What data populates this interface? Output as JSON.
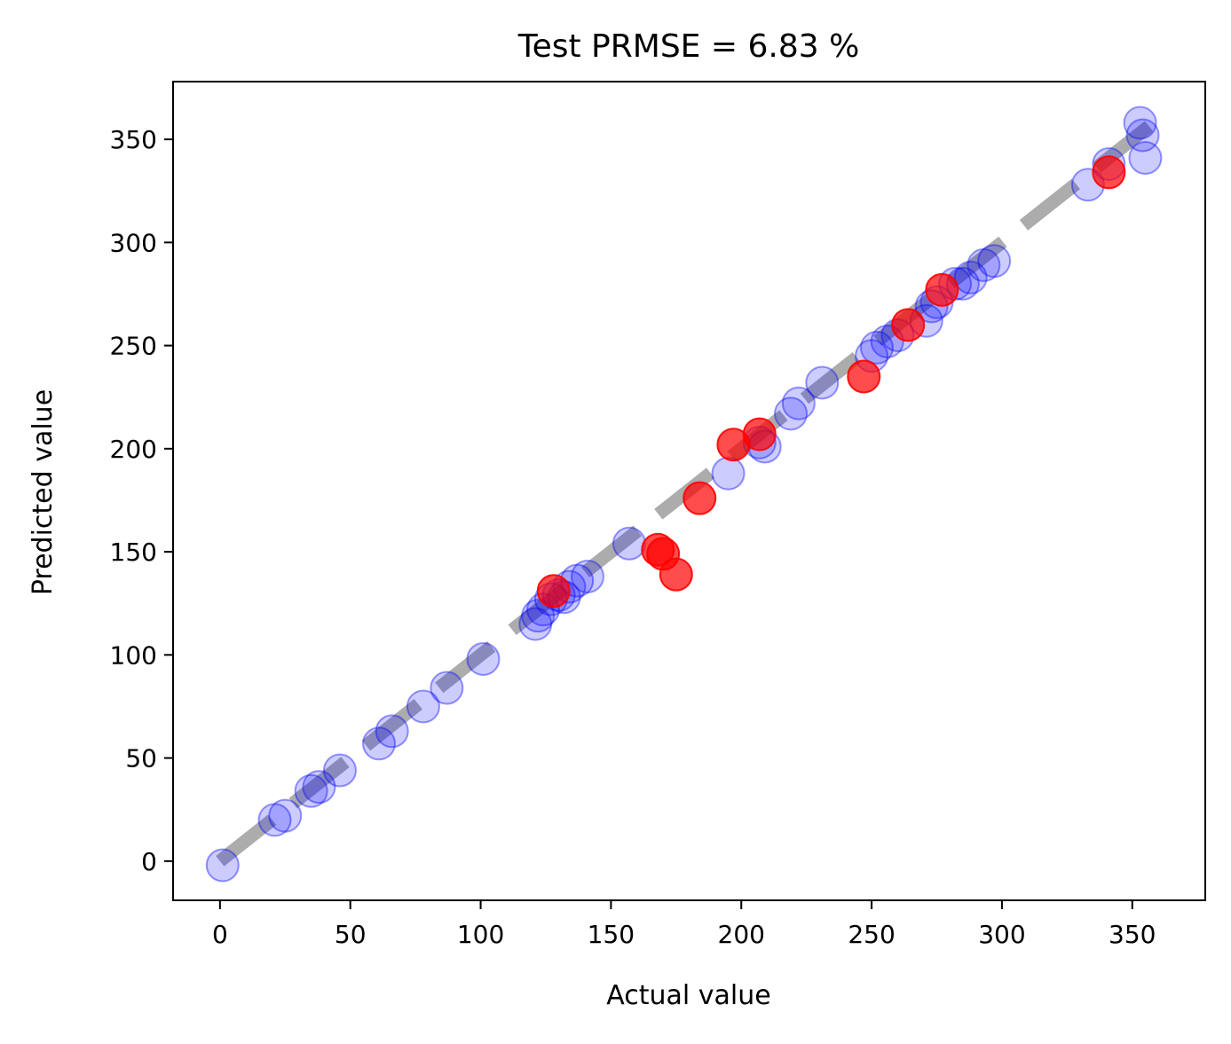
{
  "chart_data": {
    "type": "scatter",
    "title": "Test PRMSE = 6.83 %",
    "xlabel": "Actual value",
    "ylabel": "Predicted value",
    "xlim": [
      -18,
      378
    ],
    "ylim": [
      -19,
      378
    ],
    "xticks": [
      0,
      50,
      100,
      150,
      200,
      250,
      300,
      350
    ],
    "yticks": [
      0,
      50,
      100,
      150,
      200,
      250,
      300,
      350
    ],
    "grid": false,
    "reference_line": {
      "from": [
        0,
        0
      ],
      "to": [
        360,
        360
      ],
      "style": "dashed",
      "color": "#808080"
    },
    "series": [
      {
        "color": "#0000ff",
        "opacity": 0.2,
        "points": [
          [
            1,
            -2
          ],
          [
            21,
            20
          ],
          [
            25,
            22
          ],
          [
            35,
            34
          ],
          [
            38,
            36
          ],
          [
            46,
            44
          ],
          [
            61,
            57
          ],
          [
            66,
            63
          ],
          [
            78,
            75
          ],
          [
            87,
            84
          ],
          [
            101,
            98
          ],
          [
            121,
            115
          ],
          [
            122,
            119
          ],
          [
            124,
            122
          ],
          [
            127,
            127
          ],
          [
            130,
            129
          ],
          [
            132,
            128
          ],
          [
            134,
            133
          ],
          [
            137,
            136
          ],
          [
            141,
            138
          ],
          [
            157,
            154
          ],
          [
            195,
            188
          ],
          [
            207,
            203
          ],
          [
            209,
            201
          ],
          [
            219,
            217
          ],
          [
            222,
            222
          ],
          [
            231,
            232
          ],
          [
            250,
            245
          ],
          [
            252,
            249
          ],
          [
            256,
            252
          ],
          [
            260,
            255
          ],
          [
            271,
            262
          ],
          [
            273,
            269
          ],
          [
            275,
            271
          ],
          [
            282,
            280
          ],
          [
            285,
            280
          ],
          [
            288,
            283
          ],
          [
            293,
            289
          ],
          [
            297,
            291
          ],
          [
            333,
            328
          ],
          [
            341,
            338
          ],
          [
            353,
            358
          ],
          [
            354,
            352
          ],
          [
            355,
            341
          ]
        ]
      },
      {
        "color": "#ff0000",
        "opacity": 0.7,
        "points": [
          [
            128,
            131
          ],
          [
            168,
            151
          ],
          [
            170,
            149
          ],
          [
            175,
            139
          ],
          [
            184,
            176
          ],
          [
            197,
            202
          ],
          [
            207,
            207
          ],
          [
            247,
            235
          ],
          [
            264,
            260
          ],
          [
            277,
            277
          ],
          [
            341,
            334
          ]
        ]
      }
    ]
  }
}
